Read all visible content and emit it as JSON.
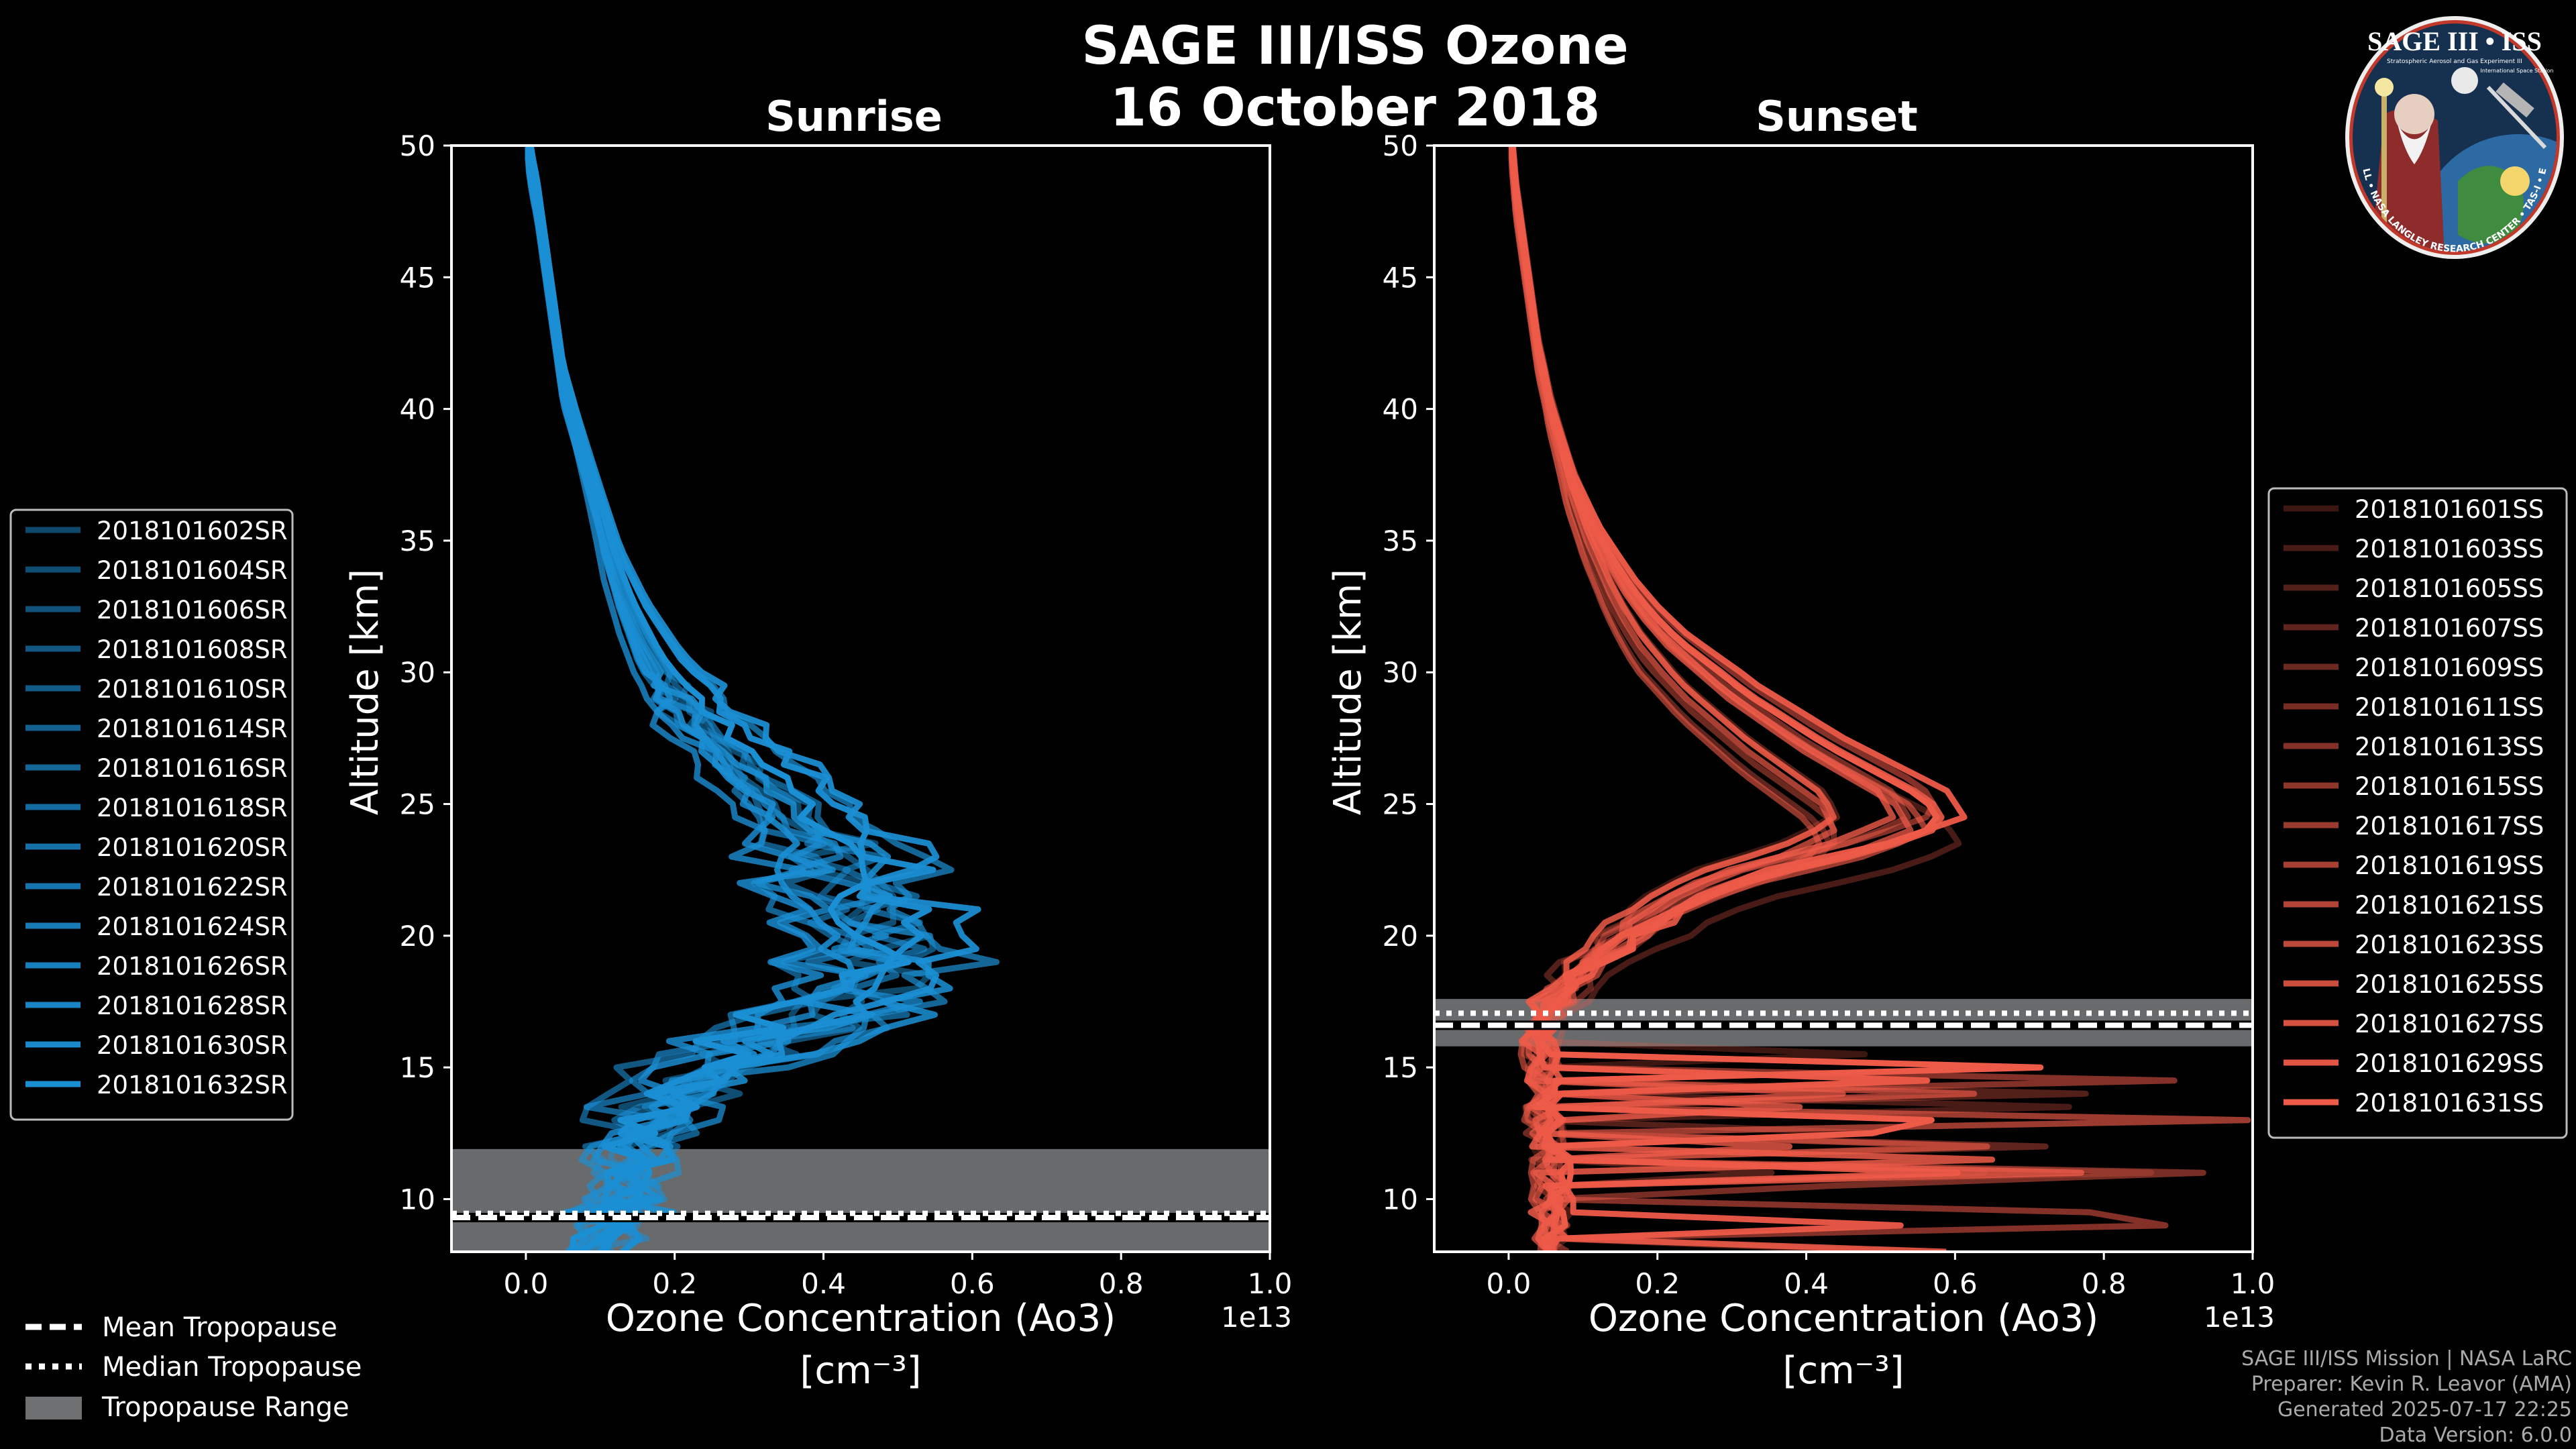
{
  "title_line1": "SAGE III/ISS Ozone",
  "title_line2": "16 October 2018",
  "footer": {
    "mission": "SAGE III/ISS Mission | NASA LaRC",
    "preparer": "Preparer: Kevin R. Leavor (AMA)",
    "generated": "Generated 2025-07-17 22:25",
    "version": "Data Version: 6.0.0"
  },
  "logo": {
    "top_text": "SAGE III • ISS",
    "subtitle": "Stratospheric Aerosol and Gas Experiment III",
    "station": "International Space Station",
    "ring_text": "BALL • NASA LANGLEY RESEARCH CENTER • TAS-I • ESA"
  },
  "colors": {
    "sunrise": "#1b8fd4",
    "sunset": "#ee5a48",
    "range": "#6e7072",
    "frame": "#ffffff"
  },
  "shared_legend": {
    "mean": "Mean Tropopause",
    "median": "Median Tropopause",
    "range": "Tropopause Range"
  },
  "chart_data": [
    {
      "type": "line",
      "panel": "sunrise",
      "title": "Sunrise",
      "xlabel": "Ozone Concentration (Ao3)",
      "xunit": "[cm⁻³]",
      "ylabel": "Altitude [km]",
      "x_multiplier": "1e13",
      "xlim": [
        -0.1,
        1.0
      ],
      "ylim": [
        8,
        50
      ],
      "xticks": [
        "0.0",
        "0.2",
        "0.4",
        "0.6",
        "0.8",
        "1.0"
      ],
      "yticks": [
        "10",
        "15",
        "20",
        "25",
        "30",
        "35",
        "40",
        "45",
        "50"
      ],
      "tropopause": {
        "min": 8.0,
        "max": 11.9,
        "mean": 9.3,
        "median": 9.1
      },
      "base_profile": {
        "altitude": [
          8,
          9,
          10,
          11,
          12,
          13,
          14,
          15,
          16,
          17,
          18,
          19,
          20,
          21,
          22,
          23,
          24,
          25,
          26,
          27,
          28,
          29,
          30,
          31,
          32,
          33,
          34,
          35,
          36,
          37,
          38,
          39,
          40,
          41,
          42,
          43,
          44,
          45,
          46,
          47,
          48,
          49,
          50
        ],
        "ozone": [
          0.1,
          0.12,
          0.14,
          0.15,
          0.16,
          0.18,
          0.21,
          0.26,
          0.34,
          0.42,
          0.48,
          0.5,
          0.49,
          0.47,
          0.44,
          0.42,
          0.4,
          0.37,
          0.33,
          0.29,
          0.25,
          0.22,
          0.19,
          0.17,
          0.15,
          0.135,
          0.12,
          0.11,
          0.1,
          0.09,
          0.08,
          0.07,
          0.06,
          0.05,
          0.045,
          0.04,
          0.035,
          0.03,
          0.025,
          0.02,
          0.015,
          0.008,
          0.003
        ]
      },
      "series": [
        {
          "name": "2018101602SR",
          "alpha": 0.5
        },
        {
          "name": "2018101604SR",
          "alpha": 0.54
        },
        {
          "name": "2018101606SR",
          "alpha": 0.57
        },
        {
          "name": "2018101608SR",
          "alpha": 0.61
        },
        {
          "name": "2018101610SR",
          "alpha": 0.64
        },
        {
          "name": "2018101614SR",
          "alpha": 0.68
        },
        {
          "name": "2018101616SR",
          "alpha": 0.71
        },
        {
          "name": "2018101618SR",
          "alpha": 0.75
        },
        {
          "name": "2018101620SR",
          "alpha": 0.79
        },
        {
          "name": "2018101622SR",
          "alpha": 0.82
        },
        {
          "name": "2018101624SR",
          "alpha": 0.86
        },
        {
          "name": "2018101626SR",
          "alpha": 0.89
        },
        {
          "name": "2018101628SR",
          "alpha": 0.93
        },
        {
          "name": "2018101630SR",
          "alpha": 0.96
        },
        {
          "name": "2018101632SR",
          "alpha": 1.0
        }
      ]
    },
    {
      "type": "line",
      "panel": "sunset",
      "title": "Sunset",
      "xlabel": "Ozone Concentration (Ao3)",
      "xunit": "[cm⁻³]",
      "ylabel": "Altitude [km]",
      "x_multiplier": "1e13",
      "xlim": [
        -0.1,
        1.0
      ],
      "ylim": [
        8,
        50
      ],
      "xticks": [
        "0.0",
        "0.2",
        "0.4",
        "0.6",
        "0.8",
        "1.0"
      ],
      "yticks": [
        "10",
        "15",
        "20",
        "25",
        "30",
        "35",
        "40",
        "45",
        "50"
      ],
      "tropopause": {
        "min": 15.8,
        "max": 17.6,
        "mean": 16.6,
        "median": 16.7
      },
      "base_profile": {
        "altitude": [
          8,
          9,
          10,
          11,
          12,
          13,
          14,
          15,
          16,
          17,
          18,
          19,
          20,
          21,
          22,
          23,
          24,
          25,
          26,
          27,
          28,
          29,
          30,
          31,
          32,
          33,
          34,
          35,
          36,
          37,
          38,
          39,
          40,
          41,
          42,
          43,
          44,
          45,
          46,
          47,
          48,
          49,
          50
        ],
        "ozone": [
          0.06,
          0.06,
          0.06,
          0.06,
          0.06,
          0.05,
          0.05,
          0.05,
          0.04,
          0.05,
          0.08,
          0.12,
          0.17,
          0.22,
          0.3,
          0.44,
          0.53,
          0.51,
          0.45,
          0.39,
          0.34,
          0.29,
          0.25,
          0.21,
          0.18,
          0.155,
          0.135,
          0.115,
          0.1,
          0.085,
          0.075,
          0.065,
          0.055,
          0.048,
          0.04,
          0.035,
          0.03,
          0.025,
          0.02,
          0.015,
          0.01,
          0.007,
          0.004
        ]
      },
      "series": [
        {
          "name": "2018101601SS",
          "alpha": 0.25
        },
        {
          "name": "2018101603SS",
          "alpha": 0.3
        },
        {
          "name": "2018101605SS",
          "alpha": 0.35
        },
        {
          "name": "2018101607SS",
          "alpha": 0.4
        },
        {
          "name": "2018101609SS",
          "alpha": 0.45
        },
        {
          "name": "2018101611SS",
          "alpha": 0.5
        },
        {
          "name": "2018101613SS",
          "alpha": 0.55
        },
        {
          "name": "2018101615SS",
          "alpha": 0.6
        },
        {
          "name": "2018101617SS",
          "alpha": 0.65
        },
        {
          "name": "2018101619SS",
          "alpha": 0.7
        },
        {
          "name": "2018101621SS",
          "alpha": 0.75
        },
        {
          "name": "2018101623SS",
          "alpha": 0.8
        },
        {
          "name": "2018101625SS",
          "alpha": 0.85
        },
        {
          "name": "2018101627SS",
          "alpha": 0.9
        },
        {
          "name": "2018101629SS",
          "alpha": 0.95
        },
        {
          "name": "2018101631SS",
          "alpha": 1.0
        }
      ]
    }
  ]
}
